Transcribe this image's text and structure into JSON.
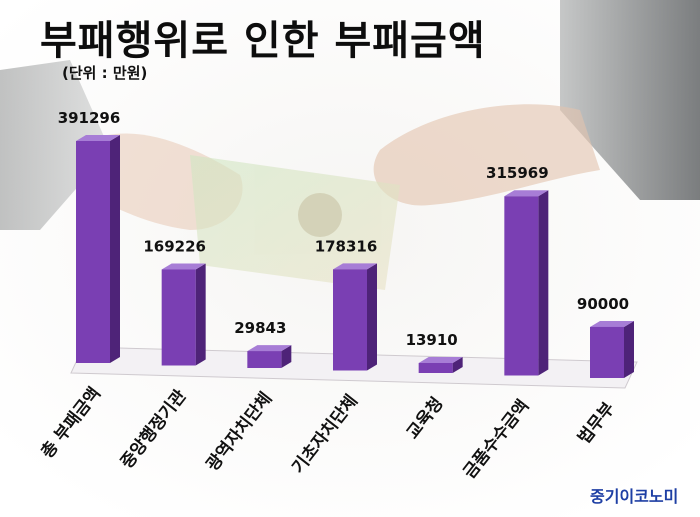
{
  "title": "부패행위로 인한 부패금액",
  "unit_note": "(단위 : 만원)",
  "brand": "중기이코노미",
  "colors": {
    "bar_front": "#7a3fb3",
    "bar_side": "#4e2378",
    "bar_top": "#a77dd6",
    "floor": "#f3f1f4",
    "brand": "#1e3fa4"
  },
  "chart_data": {
    "type": "bar",
    "title": "부패행위로 인한 부패금액",
    "ylabel": "",
    "xlabel": "",
    "categories": [
      "총 부패금액",
      "중앙행정기관",
      "광역자치단체",
      "기초자치단체",
      "교육청",
      "금품수수금액",
      "법무부"
    ],
    "values": [
      391296,
      169226,
      29843,
      178316,
      13910,
      315969,
      90000
    ],
    "ylim": [
      0,
      391296
    ],
    "grid": false,
    "legend": "none"
  }
}
